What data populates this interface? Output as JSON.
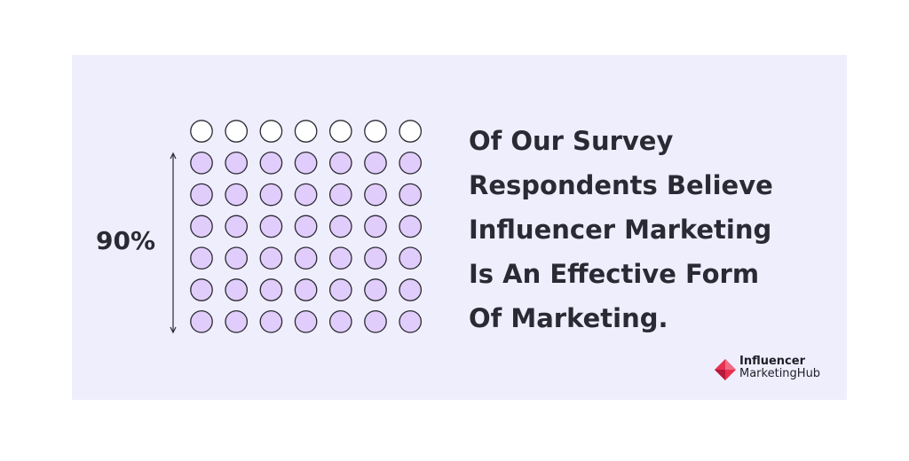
{
  "colors": {
    "background": "#efeefd",
    "filled": "#e1cdfb",
    "empty": "#ffffff",
    "stroke": "#2b2b33",
    "text": "#2a2a34",
    "logo_red": "#e8304f",
    "logo_pink": "#f06b84"
  },
  "chart_data": {
    "type": "pictogram",
    "rows": 7,
    "columns": 7,
    "filled_rows": 6,
    "value_label": "90%",
    "value": 90
  },
  "statement_lines": [
    "Of Our Survey",
    "Respondents Believe",
    "Influencer Marketing",
    "Is An Effective Form",
    "Of Marketing."
  ],
  "logo": {
    "line1": "Influencer",
    "line2": "MarketingHub"
  }
}
